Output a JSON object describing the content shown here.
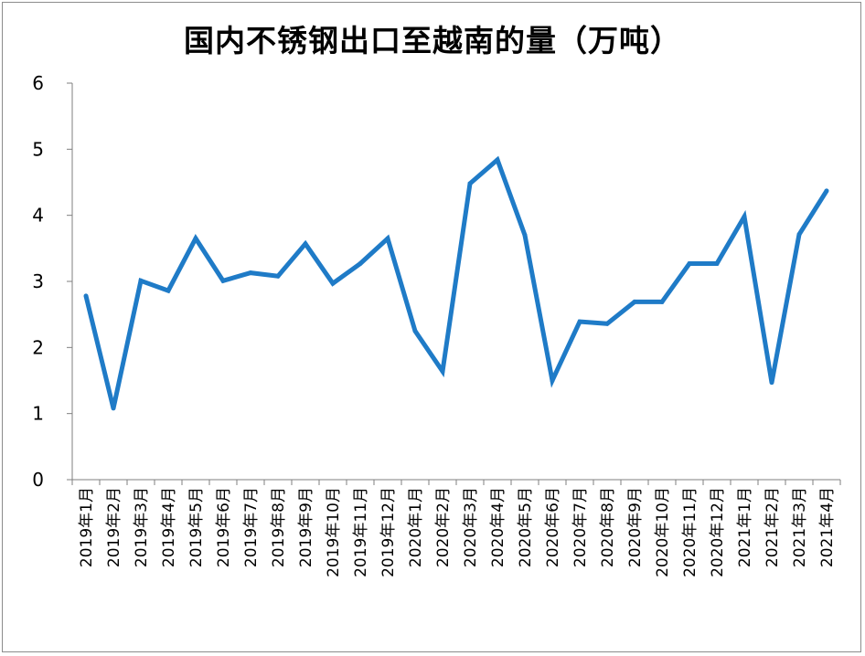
{
  "chart_data": {
    "type": "line",
    "title": "国内不锈钢出口至越南的量（万吨）",
    "xlabel": "",
    "ylabel": "",
    "ylim": [
      0,
      6
    ],
    "yticks": [
      0,
      1,
      2,
      3,
      4,
      5,
      6
    ],
    "grid": false,
    "legend": "none",
    "line_color": "#1f7bc7",
    "categories": [
      "2019年1月",
      "2019年2月",
      "2019年3月",
      "2019年4月",
      "2019年5月",
      "2019年6月",
      "2019年7月",
      "2019年8月",
      "2019年9月",
      "2019年10月",
      "2019年11月",
      "2019年12月",
      "2020年1月",
      "2020年2月",
      "2020年3月",
      "2020年4月",
      "2020年5月",
      "2020年6月",
      "2020年7月",
      "2020年8月",
      "2020年9月",
      "2020年10月",
      "2020年11月",
      "2020年12月",
      "2021年1月",
      "2021年2月",
      "2021年3月",
      "2021年4月"
    ],
    "series": [
      {
        "values": [
          2.78,
          1.08,
          3.01,
          2.86,
          3.65,
          3.01,
          3.13,
          3.08,
          3.57,
          2.97,
          3.27,
          3.65,
          2.25,
          1.64,
          4.48,
          4.84,
          3.7,
          1.5,
          2.39,
          2.36,
          2.69,
          2.69,
          3.27,
          3.27,
          3.98,
          1.47,
          3.71,
          4.37
        ]
      }
    ]
  }
}
